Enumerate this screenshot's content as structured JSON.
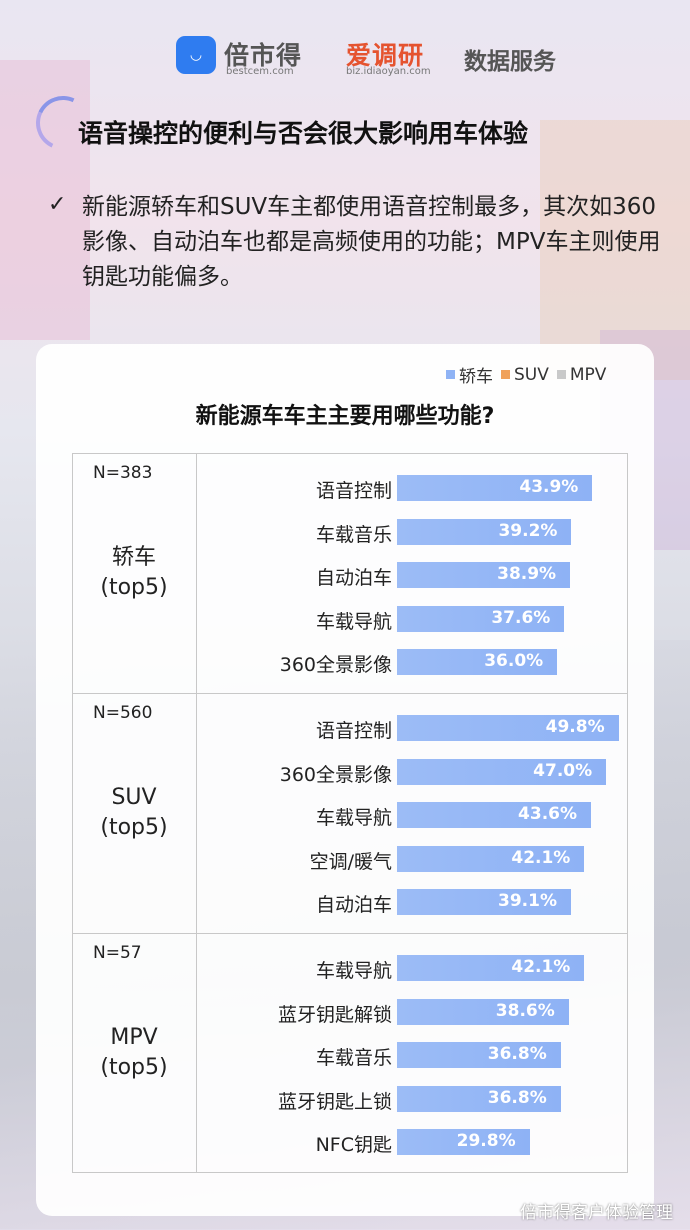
{
  "header": {
    "brand1": "倍市得",
    "brand1_sub": "bestcem.com",
    "brand2": "爱调研",
    "brand2_sub": "biz.idiaoyan.com",
    "brand3": "数据服务"
  },
  "title": "语音操控的便利与否会很大影响用车体验",
  "description": "新能源轿车和SUV车主都使用语音控制最多，其次如360影像、自动泊车也都是高频使用的功能；MPV车主则使用钥匙功能偏多。",
  "check_mark": "✓",
  "watermark": "倍市得客户体验管理",
  "chart_data": {
    "type": "bar",
    "orientation": "horizontal",
    "title": "新能源车车主主要用哪些功能?",
    "legend": [
      {
        "name": "轿车",
        "color": "#8fb3f5"
      },
      {
        "name": "SUV",
        "color": "#f0a15a"
      },
      {
        "name": "MPV",
        "color": "#c9c9c9"
      }
    ],
    "xlim": [
      0,
      55
    ],
    "groups": [
      {
        "n": "N=383",
        "name": "轿车",
        "sub": "(top5)",
        "series": "轿车",
        "categories": [
          "语音控制",
          "车载音乐",
          "自动泊车",
          "车载导航",
          "360全景影像"
        ],
        "values": [
          43.9,
          39.2,
          38.9,
          37.6,
          36.0
        ],
        "labels": [
          "43.9%",
          "39.2%",
          "38.9%",
          "37.6%",
          "36.0%"
        ]
      },
      {
        "n": "N=560",
        "name": "SUV",
        "sub": "(top5)",
        "series": "SUV",
        "categories": [
          "语音控制",
          "360全景影像",
          "车载导航",
          "空调/暖气",
          "自动泊车"
        ],
        "values": [
          49.8,
          47.0,
          43.6,
          42.1,
          39.1
        ],
        "labels": [
          "49.8%",
          "47.0%",
          "43.6%",
          "42.1%",
          "39.1%"
        ]
      },
      {
        "n": "N=57",
        "name": "MPV",
        "sub": "(top5)",
        "series": "MPV",
        "categories": [
          "车载导航",
          "蓝牙钥匙解锁",
          "车载音乐",
          "蓝牙钥匙上锁",
          "NFC钥匙"
        ],
        "values": [
          42.1,
          38.6,
          36.8,
          36.8,
          29.8
        ],
        "labels": [
          "42.1%",
          "38.6%",
          "36.8%",
          "36.8%",
          "29.8%"
        ]
      }
    ]
  }
}
